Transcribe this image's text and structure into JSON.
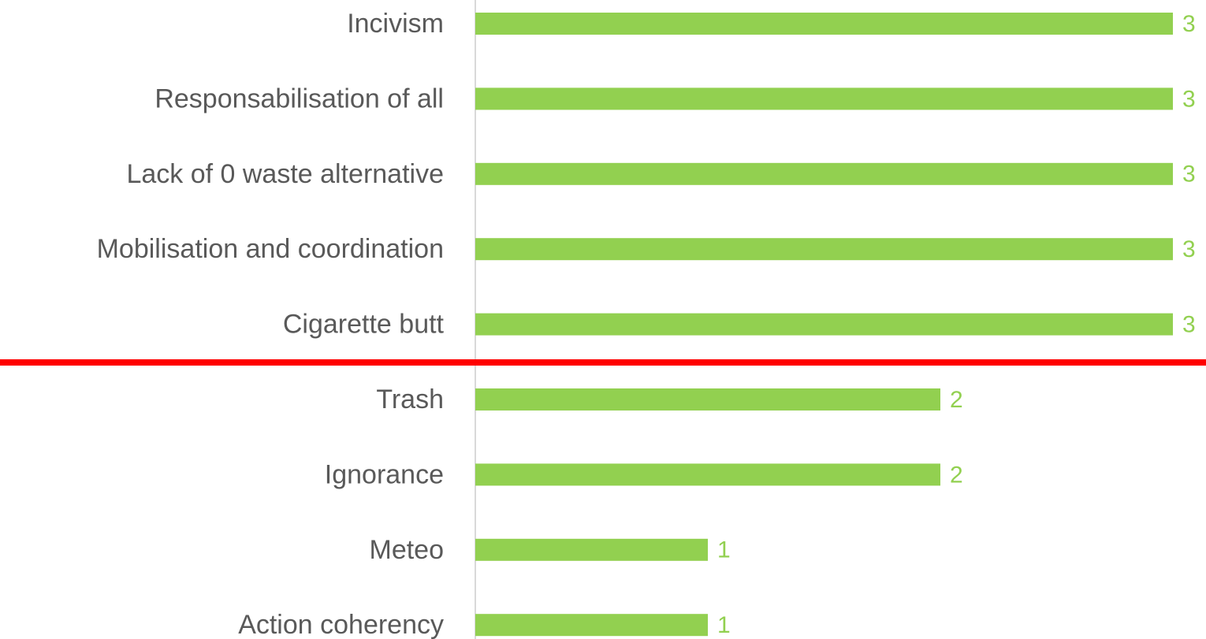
{
  "chart_data": {
    "type": "bar",
    "orientation": "horizontal",
    "categories": [
      "Incivism",
      "Responsabilisation of all",
      "Lack of 0 waste alternative",
      "Mobilisation and coordination",
      "Cigarette butt",
      "Trash",
      "Ignorance",
      "Meteo",
      "Action coherency"
    ],
    "values": [
      3,
      3,
      3,
      3,
      3,
      2,
      2,
      1,
      1
    ],
    "color": "#92d050",
    "xlim": [
      0,
      3
    ]
  }
}
